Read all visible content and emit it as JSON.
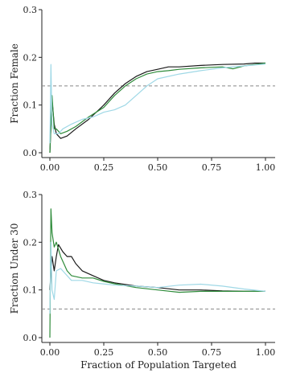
{
  "chart_data": [
    {
      "type": "line",
      "ylabel": "Fraction Female",
      "xlabel": "",
      "xlim": [
        0,
        1
      ],
      "ylim": [
        0,
        0.3
      ],
      "x_ticks": [
        "0.00",
        "0.25",
        "0.50",
        "0.75",
        "1.00"
      ],
      "y_ticks": [
        "0.0",
        "0.1",
        "0.2",
        "0.3"
      ],
      "reference_line": 0.14,
      "series": [
        {
          "color": "#1a1a1a",
          "x": [
            0.0,
            0.01,
            0.02,
            0.03,
            0.05,
            0.08,
            0.12,
            0.18,
            0.25,
            0.3,
            0.35,
            0.4,
            0.45,
            0.5,
            0.55,
            0.6,
            0.7,
            0.8,
            0.9,
            0.95,
            1.0
          ],
          "y": [
            0.0,
            0.11,
            0.06,
            0.04,
            0.03,
            0.035,
            0.05,
            0.07,
            0.1,
            0.125,
            0.145,
            0.16,
            0.17,
            0.175,
            0.18,
            0.18,
            0.183,
            0.185,
            0.186,
            0.188,
            0.188
          ]
        },
        {
          "color": "#2e8b3a",
          "x": [
            0.0,
            0.01,
            0.02,
            0.03,
            0.05,
            0.08,
            0.12,
            0.18,
            0.25,
            0.3,
            0.35,
            0.4,
            0.45,
            0.5,
            0.55,
            0.6,
            0.7,
            0.8,
            0.85,
            0.9,
            1.0
          ],
          "y": [
            0.0,
            0.12,
            0.05,
            0.05,
            0.04,
            0.045,
            0.055,
            0.075,
            0.095,
            0.12,
            0.14,
            0.155,
            0.165,
            0.17,
            0.172,
            0.175,
            0.178,
            0.18,
            0.176,
            0.182,
            0.188
          ]
        },
        {
          "color": "#9fd8e6",
          "x": [
            0.0,
            0.005,
            0.01,
            0.02,
            0.04,
            0.06,
            0.1,
            0.15,
            0.2,
            0.25,
            0.3,
            0.35,
            0.4,
            0.45,
            0.5,
            0.6,
            0.7,
            0.8,
            0.9,
            1.0
          ],
          "y": [
            0.02,
            0.185,
            0.06,
            0.04,
            0.04,
            0.05,
            0.06,
            0.07,
            0.075,
            0.085,
            0.09,
            0.1,
            0.12,
            0.14,
            0.155,
            0.165,
            0.172,
            0.178,
            0.182,
            0.186
          ]
        }
      ]
    },
    {
      "type": "line",
      "ylabel": "Fraction Under 30",
      "xlabel": "Fraction of Population Targeted",
      "xlim": [
        0,
        1
      ],
      "ylim": [
        0,
        0.3
      ],
      "x_ticks": [
        "0.00",
        "0.25",
        "0.50",
        "0.75",
        "1.00"
      ],
      "y_ticks": [
        "0.0",
        "0.1",
        "0.2",
        "0.3"
      ],
      "reference_line": 0.06,
      "series": [
        {
          "color": "#1a1a1a",
          "x": [
            0.0,
            0.01,
            0.02,
            0.03,
            0.04,
            0.06,
            0.08,
            0.1,
            0.12,
            0.15,
            0.2,
            0.25,
            0.3,
            0.4,
            0.5,
            0.6,
            0.7,
            0.8,
            0.9,
            1.0
          ],
          "y": [
            0.1,
            0.17,
            0.14,
            0.17,
            0.195,
            0.18,
            0.17,
            0.17,
            0.155,
            0.14,
            0.13,
            0.12,
            0.115,
            0.108,
            0.105,
            0.1,
            0.1,
            0.098,
            0.097,
            0.097
          ]
        },
        {
          "color": "#2e8b3a",
          "x": [
            0.0,
            0.005,
            0.01,
            0.02,
            0.03,
            0.05,
            0.08,
            0.1,
            0.15,
            0.2,
            0.25,
            0.3,
            0.4,
            0.5,
            0.6,
            0.7,
            0.8,
            0.9,
            1.0
          ],
          "y": [
            0.0,
            0.27,
            0.22,
            0.19,
            0.2,
            0.17,
            0.14,
            0.13,
            0.125,
            0.125,
            0.118,
            0.113,
            0.105,
            0.1,
            0.095,
            0.097,
            0.097,
            0.097,
            0.097
          ]
        },
        {
          "color": "#9fd8e6",
          "x": [
            0.0,
            0.005,
            0.01,
            0.02,
            0.03,
            0.05,
            0.08,
            0.1,
            0.15,
            0.2,
            0.3,
            0.4,
            0.5,
            0.6,
            0.7,
            0.8,
            0.9,
            1.0
          ],
          "y": [
            0.05,
            0.2,
            0.1,
            0.08,
            0.14,
            0.145,
            0.13,
            0.12,
            0.12,
            0.115,
            0.11,
            0.108,
            0.105,
            0.11,
            0.112,
            0.108,
            0.102,
            0.097
          ]
        }
      ]
    }
  ]
}
